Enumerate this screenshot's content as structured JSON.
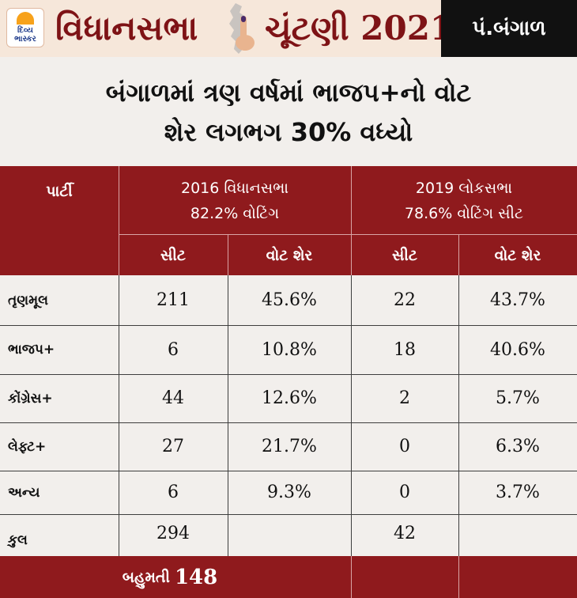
{
  "header": {
    "logo_line1": "દિવ્ય",
    "logo_line2": "ભાસ્કર",
    "title_part1": "વિધાનસભા",
    "title_part2": "ચૂંટણી 2021",
    "state": "પં.બંગાળ"
  },
  "headline": {
    "line1": "બંગાળમાં ત્રણ વર્ષમાં ભાજપ+નો વોટ",
    "line2": "શેર લગભગ 30% વધ્યો"
  },
  "table": {
    "party_header": "પાર્ટી",
    "group1": {
      "line1": "2016 વિધાનસભા",
      "line2": "82.2% વોટિંગ"
    },
    "group2": {
      "line1": "2019 લોકસભા",
      "line2": "78.6% વોટિંગ સીટ"
    },
    "sub_seat": "સીટ",
    "sub_share": "વોટ શેર",
    "rows": [
      {
        "party": "તૃણમૂલ",
        "s2016": "211",
        "v2016": "45.6%",
        "s2019": "22",
        "v2019": "43.7%"
      },
      {
        "party": "ભાજપ+",
        "s2016": "6",
        "v2016": "10.8%",
        "s2019": "18",
        "v2019": "40.6%"
      },
      {
        "party": "કોંગ્રેસ+",
        "s2016": "44",
        "v2016": "12.6%",
        "s2019": "2",
        "v2019": "5.7%"
      },
      {
        "party": "લેફ્ટ+",
        "s2016": "27",
        "v2016": "21.7%",
        "s2019": "0",
        "v2019": "6.3%"
      },
      {
        "party": "અન્ય",
        "s2016": "6",
        "v2016": "9.3%",
        "s2019": "0",
        "v2019": "3.7%"
      }
    ],
    "total": {
      "party": "કુલ",
      "s2016": "294",
      "s2019": "42"
    },
    "majority_label": "બહુમતી",
    "majority_value": "148"
  },
  "colors": {
    "maroon": "#8f1a1d",
    "title": "#7e1316",
    "header_bg": "#f6e7da"
  }
}
